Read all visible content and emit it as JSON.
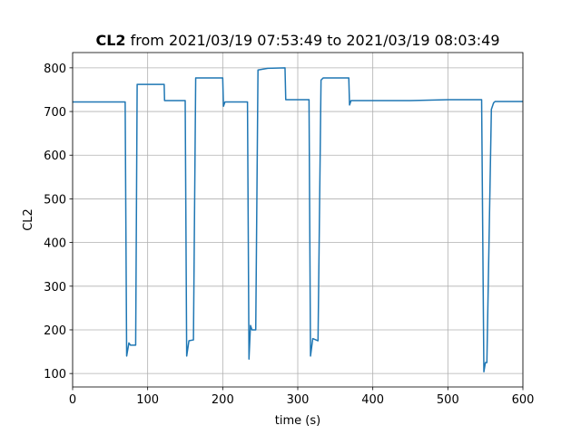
{
  "chart_data": {
    "type": "line",
    "title_parts": [
      "CL2",
      "from 2021/03/19 07:53:49 to 2021/03/19 08:03:49"
    ],
    "xlabel": "time (s)",
    "ylabel": "CL2",
    "x": [
      0,
      70,
      72,
      75,
      77,
      84,
      86,
      122,
      122.5,
      150,
      152,
      155,
      161,
      164,
      200,
      201,
      203,
      233,
      235,
      237,
      239,
      244,
      247,
      260,
      283,
      284,
      315,
      317,
      320,
      327,
      331,
      334,
      368,
      369,
      371,
      450,
      500,
      545,
      548,
      550,
      552,
      558,
      561,
      563,
      600
    ],
    "values": [
      722,
      722,
      140,
      170,
      165,
      165,
      762,
      762,
      725,
      725,
      140,
      175,
      177,
      777,
      777,
      712,
      722,
      722,
      133,
      210,
      200,
      200,
      795,
      799,
      800,
      727,
      727,
      140,
      180,
      175,
      772,
      777,
      777,
      715,
      725,
      725,
      727,
      727,
      104,
      125,
      125,
      705,
      720,
      723,
      723
    ],
    "color": "#1f77b4",
    "xlim": [
      0,
      600
    ],
    "xticks": [
      0,
      100,
      200,
      300,
      400,
      500,
      600
    ],
    "ylim": [
      69.2,
      835.0
    ],
    "yticks": [
      100,
      200,
      300,
      400,
      500,
      600,
      700,
      800
    ],
    "grid": true
  }
}
